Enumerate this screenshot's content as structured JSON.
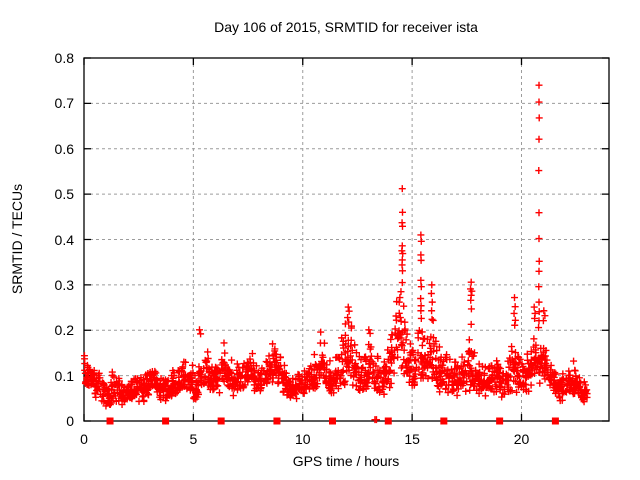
{
  "window": {
    "background": "#ffffff",
    "text_color": "#000000"
  },
  "chart_data": {
    "type": "scatter",
    "title": "Day 106 of 2015, SRMTID for receiver ista",
    "xlabel": "GPS time / hours",
    "ylabel": "SRMTID / TECUs",
    "xlim": [
      0,
      24
    ],
    "ylim": [
      0,
      0.8
    ],
    "xticks": [
      0,
      5,
      10,
      15,
      20
    ],
    "xtick_labels": [
      "0",
      "5",
      "10",
      "15",
      "20"
    ],
    "yticks": [
      0,
      0.1,
      0.2,
      0.3,
      0.4,
      0.5,
      0.6,
      0.7,
      0.8
    ],
    "ytick_labels": [
      "0",
      "0.1",
      "0.2",
      "0.3",
      "0.4",
      "0.5",
      "0.6",
      "0.7",
      "0.8"
    ],
    "grid": {
      "show": true,
      "style": "dashed",
      "color": "#9c9c9c",
      "x_lines": [
        5,
        10,
        15,
        20
      ],
      "y_lines": [
        0.1,
        0.2,
        0.3,
        0.4,
        0.5,
        0.6,
        0.7
      ]
    },
    "style": {
      "marker": "plus",
      "marker_color": "#ff0000",
      "marker_size": 7,
      "axis_color": "#000000",
      "background": "#ffffff",
      "legend": "none"
    },
    "series": [
      {
        "name": "srmtid_scatter",
        "marker": "plus",
        "color": "#ff0000",
        "envelope": {
          "comment": "dense noisy baseline; bins of [y_min,y_max] per 0.25 h starting at x=0",
          "x_start": 0,
          "bin_width": 0.25,
          "points_per_bin": 18,
          "seed": 1062015,
          "bins": [
            [
              0.06,
              0.145
            ],
            [
              0.06,
              0.13
            ],
            [
              0.05,
              0.115
            ],
            [
              0.04,
              0.1
            ],
            [
              0.03,
              0.095
            ],
            [
              0.04,
              0.12
            ],
            [
              0.03,
              0.1
            ],
            [
              0.03,
              0.085
            ],
            [
              0.04,
              0.1
            ],
            [
              0.05,
              0.115
            ],
            [
              0.04,
              0.105
            ],
            [
              0.05,
              0.12
            ],
            [
              0.06,
              0.125
            ],
            [
              0.05,
              0.115
            ],
            [
              0.04,
              0.105
            ],
            [
              0.045,
              0.105
            ],
            [
              0.05,
              0.115
            ],
            [
              0.06,
              0.125
            ],
            [
              0.065,
              0.135
            ],
            [
              0.06,
              0.125
            ],
            [
              0.04,
              0.105
            ],
            [
              0.06,
              0.15
            ],
            [
              0.07,
              0.155
            ],
            [
              0.06,
              0.135
            ],
            [
              0.06,
              0.135
            ],
            [
              0.07,
              0.165
            ],
            [
              0.06,
              0.14
            ],
            [
              0.05,
              0.12
            ],
            [
              0.06,
              0.13
            ],
            [
              0.07,
              0.15
            ],
            [
              0.075,
              0.16
            ],
            [
              0.06,
              0.135
            ],
            [
              0.06,
              0.13
            ],
            [
              0.075,
              0.15
            ],
            [
              0.085,
              0.165
            ],
            [
              0.08,
              0.155
            ],
            [
              0.06,
              0.13
            ],
            [
              0.05,
              0.115
            ],
            [
              0.045,
              0.105
            ],
            [
              0.05,
              0.115
            ],
            [
              0.05,
              0.12
            ],
            [
              0.06,
              0.135
            ],
            [
              0.07,
              0.155
            ],
            [
              0.075,
              0.185
            ],
            [
              0.06,
              0.14
            ],
            [
              0.055,
              0.13
            ],
            [
              0.07,
              0.165
            ],
            [
              0.08,
              0.21
            ],
            [
              0.08,
              0.235
            ],
            [
              0.07,
              0.19
            ],
            [
              0.05,
              0.15
            ],
            [
              0.06,
              0.165
            ],
            [
              0.065,
              0.19
            ],
            [
              0.05,
              0.155
            ],
            [
              0.05,
              0.14
            ],
            [
              0.06,
              0.175
            ],
            [
              0.075,
              0.25
            ],
            [
              0.09,
              0.29
            ],
            [
              0.1,
              0.27
            ],
            [
              0.07,
              0.2
            ],
            [
              0.06,
              0.175
            ],
            [
              0.08,
              0.22
            ],
            [
              0.07,
              0.21
            ],
            [
              0.08,
              0.225
            ],
            [
              0.07,
              0.21
            ],
            [
              0.06,
              0.175
            ],
            [
              0.06,
              0.16
            ],
            [
              0.05,
              0.14
            ],
            [
              0.055,
              0.14
            ],
            [
              0.06,
              0.15
            ],
            [
              0.065,
              0.185
            ],
            [
              0.06,
              0.16
            ],
            [
              0.055,
              0.145
            ],
            [
              0.05,
              0.13
            ],
            [
              0.06,
              0.14
            ],
            [
              0.06,
              0.15
            ],
            [
              0.05,
              0.13
            ],
            [
              0.06,
              0.145
            ],
            [
              0.065,
              0.185
            ],
            [
              0.06,
              0.16
            ],
            [
              0.06,
              0.15
            ],
            [
              0.065,
              0.165
            ],
            [
              0.075,
              0.2
            ],
            [
              0.08,
              0.21
            ],
            [
              0.07,
              0.19
            ],
            [
              0.06,
              0.155
            ],
            [
              0.05,
              0.12
            ],
            [
              0.04,
              0.11
            ],
            [
              0.05,
              0.12
            ],
            [
              0.055,
              0.13
            ],
            [
              0.045,
              0.11
            ],
            [
              0.04,
              0.09
            ]
          ]
        },
        "peaks": [
          [
            14.55,
            0.512
          ],
          [
            14.56,
            0.46
          ],
          [
            14.54,
            0.437
          ],
          [
            14.56,
            0.429
          ],
          [
            14.55,
            0.386
          ],
          [
            14.53,
            0.375
          ],
          [
            14.57,
            0.369
          ],
          [
            14.55,
            0.355
          ],
          [
            14.54,
            0.344
          ],
          [
            14.56,
            0.331
          ],
          [
            14.55,
            0.305
          ],
          [
            14.49,
            0.285
          ],
          [
            14.44,
            0.272
          ],
          [
            14.41,
            0.262
          ],
          [
            15.4,
            0.41
          ],
          [
            15.42,
            0.396
          ],
          [
            15.4,
            0.366
          ],
          [
            15.41,
            0.354
          ],
          [
            15.4,
            0.31
          ],
          [
            15.42,
            0.296
          ],
          [
            15.39,
            0.27
          ],
          [
            15.41,
            0.254
          ],
          [
            15.4,
            0.243
          ],
          [
            15.42,
            0.226
          ],
          [
            15.9,
            0.3
          ],
          [
            15.88,
            0.281
          ],
          [
            15.92,
            0.262
          ],
          [
            15.89,
            0.243
          ],
          [
            15.91,
            0.224
          ],
          [
            17.7,
            0.306
          ],
          [
            17.67,
            0.291
          ],
          [
            17.73,
            0.286
          ],
          [
            17.7,
            0.277
          ],
          [
            17.68,
            0.266
          ],
          [
            17.71,
            0.247
          ],
          [
            17.7,
            0.213
          ],
          [
            19.68,
            0.272
          ],
          [
            19.71,
            0.252
          ],
          [
            19.66,
            0.237
          ],
          [
            19.72,
            0.222
          ],
          [
            19.69,
            0.211
          ],
          [
            20.58,
            0.251
          ],
          [
            20.62,
            0.237
          ],
          [
            20.6,
            0.226
          ],
          [
            20.8,
            0.74
          ],
          [
            20.8,
            0.703
          ],
          [
            20.81,
            0.668
          ],
          [
            20.8,
            0.621
          ],
          [
            20.79,
            0.552
          ],
          [
            20.8,
            0.459
          ],
          [
            20.8,
            0.402
          ],
          [
            20.81,
            0.352
          ],
          [
            20.8,
            0.33
          ],
          [
            20.79,
            0.296
          ],
          [
            20.8,
            0.262
          ],
          [
            20.81,
            0.241
          ],
          [
            20.8,
            0.221
          ],
          [
            20.78,
            0.206
          ],
          [
            21.02,
            0.243
          ],
          [
            21.07,
            0.232
          ],
          [
            21.0,
            0.221
          ],
          [
            12.08,
            0.251
          ],
          [
            12.12,
            0.242
          ],
          [
            12.05,
            0.228
          ],
          [
            12.1,
            0.218
          ],
          [
            11.95,
            0.214
          ],
          [
            13.02,
            0.201
          ],
          [
            13.08,
            0.193
          ],
          [
            10.82,
            0.196
          ],
          [
            5.28,
            0.201
          ],
          [
            5.33,
            0.192
          ],
          [
            6.4,
            0.172
          ],
          [
            8.62,
            0.17
          ],
          [
            22.38,
            0.132
          ],
          [
            0.02,
            0.144
          ],
          [
            13.3,
            0.003
          ],
          [
            13.37,
            0.003
          ]
        ]
      },
      {
        "name": "event_squares",
        "marker": "filled-square",
        "color": "#ff0000",
        "y": 0,
        "x": [
          1.19,
          3.73,
          6.27,
          8.82,
          11.36,
          13.91,
          16.45,
          19.0,
          21.55
        ]
      }
    ]
  }
}
